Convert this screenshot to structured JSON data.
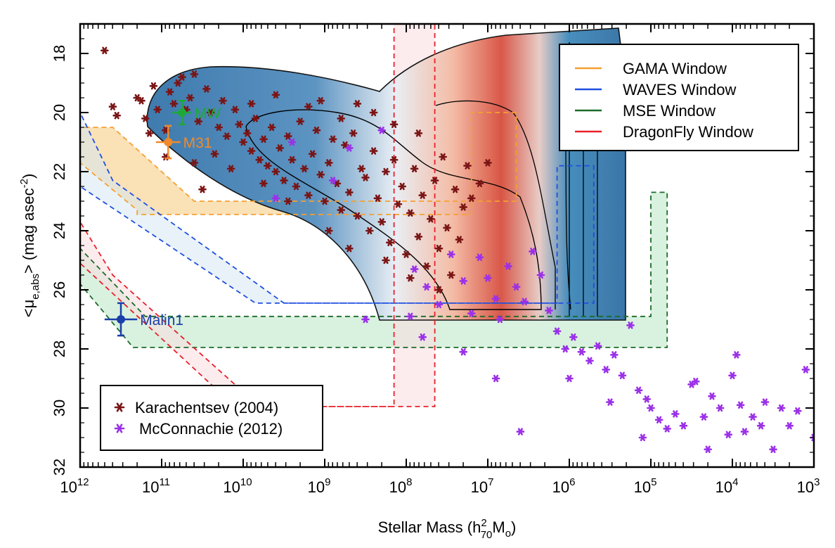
{
  "chart_data": {
    "type": "scatter",
    "xlabel_main": "Stellar Mass (h",
    "xlabel_sup": "2",
    "xlabel_sub": "70",
    "xlabel_tail": "M",
    "xlabel_tail_sub": "o",
    "xlabel_close": ")",
    "ylabel_pre": "<μ",
    "ylabel_sub": "e,abs",
    "ylabel_post": "> (mag asec",
    "ylabel_sup": "-2",
    "ylabel_close": ")",
    "x_axis": {
      "scale": "log",
      "reversed": true,
      "min_exp": 3,
      "max_exp": 12,
      "tick_base": "10",
      "ticks": [
        {
          "exp": 12,
          "label": "12"
        },
        {
          "exp": 11,
          "label": "11"
        },
        {
          "exp": 10,
          "label": "10"
        },
        {
          "exp": 9,
          "label": "9"
        },
        {
          "exp": 8,
          "label": "8"
        },
        {
          "exp": 7,
          "label": "7"
        },
        {
          "exp": 6,
          "label": "6"
        },
        {
          "exp": 5,
          "label": "5"
        },
        {
          "exp": 4,
          "label": "4"
        },
        {
          "exp": 3,
          "label": "3"
        }
      ]
    },
    "y_axis": {
      "reversed": true,
      "min": 17,
      "max": 32,
      "ticks": [
        {
          "value": 18,
          "label": "18"
        },
        {
          "value": 20,
          "label": "20"
        },
        {
          "value": 22,
          "label": "22"
        },
        {
          "value": 24,
          "label": "24"
        },
        {
          "value": 26,
          "label": "26"
        },
        {
          "value": 28,
          "label": "28"
        },
        {
          "value": 30,
          "label": "30"
        },
        {
          "value": 32,
          "label": "32"
        }
      ]
    },
    "windows": [
      {
        "name": "GAMA Window",
        "color": "#f5a030",
        "fill": "#f5c97a",
        "polygon": [
          [
            12,
            20.5
          ],
          [
            12,
            21.7
          ],
          [
            11.3,
            23.3
          ],
          [
            11.3,
            23.45
          ],
          [
            7.2,
            23.45
          ],
          [
            7.2,
            20.0
          ],
          [
            6.65,
            20.0
          ],
          [
            6.65,
            23.0
          ],
          [
            10.6,
            23.0
          ],
          [
            11.6,
            20.5
          ]
        ]
      },
      {
        "name": "WAVES Window",
        "color": "#1f4fe0",
        "fill": "#d6e8f2",
        "polygon": [
          [
            12,
            20.0
          ],
          [
            12,
            22.5
          ],
          [
            9.85,
            26.45
          ],
          [
            6.15,
            26.45
          ],
          [
            6.15,
            21.8
          ],
          [
            5.7,
            21.8
          ],
          [
            5.7,
            26.45
          ],
          [
            9.5,
            26.45
          ],
          [
            11.6,
            22.3
          ]
        ]
      },
      {
        "name": "MSE Window",
        "color": "#1b6b2a",
        "fill": "#b9e5c5",
        "polygon": [
          [
            12,
            24.6
          ],
          [
            12,
            25.8
          ],
          [
            11.35,
            27.95
          ],
          [
            4.8,
            27.95
          ],
          [
            4.8,
            22.7
          ],
          [
            5.0,
            22.7
          ],
          [
            5.0,
            26.9
          ],
          [
            11.2,
            26.9
          ]
        ]
      },
      {
        "name": "DragonFly Window",
        "color": "#e8202a",
        "fill": "#fbdde0",
        "polygon": [
          [
            12,
            23.7
          ],
          [
            12,
            25.1
          ],
          [
            10.1,
            29.95
          ],
          [
            8.15,
            29.95
          ],
          [
            8.15,
            17.0
          ],
          [
            7.65,
            17.0
          ],
          [
            7.65,
            29.95
          ],
          [
            9.8,
            29.95
          ],
          [
            11.6,
            25.5
          ]
        ]
      }
    ],
    "markers": [
      {
        "name": "MW",
        "logm": 10.75,
        "mu": 20.0,
        "xerr": 0.12,
        "yerr": 0.4,
        "color": "#1fa83a"
      },
      {
        "name": "M31",
        "logm": 10.92,
        "mu": 21.0,
        "xerr": 0.15,
        "yerr": 0.55,
        "color": "#f08a2a"
      },
      {
        "name": "Malin1",
        "logm": 11.5,
        "mu": 27.0,
        "xerr": 0.2,
        "yerr": 0.55,
        "color": "#1a3fa8"
      }
    ],
    "series": [
      {
        "name": "Karachentsev (2004)",
        "color": "#7a1515",
        "points": [
          [
            11.7,
            17.9
          ],
          [
            11.6,
            19.8
          ],
          [
            11.55,
            20.1
          ],
          [
            11.3,
            19.5
          ],
          [
            11.25,
            19.6
          ],
          [
            11.2,
            20.2
          ],
          [
            11.1,
            19.1
          ],
          [
            11.05,
            19.9
          ],
          [
            10.95,
            20.6
          ],
          [
            10.9,
            19.3
          ],
          [
            10.85,
            19.7
          ],
          [
            10.8,
            19.0
          ],
          [
            10.75,
            18.8
          ],
          [
            10.7,
            19.9
          ],
          [
            10.65,
            19.5
          ],
          [
            10.6,
            18.7
          ],
          [
            10.55,
            20.3
          ],
          [
            10.45,
            19.2
          ],
          [
            10.4,
            20.0
          ],
          [
            10.3,
            20.5
          ],
          [
            10.25,
            19.6
          ],
          [
            10.2,
            20.8
          ],
          [
            10.1,
            19.9
          ],
          [
            10.05,
            20.4
          ],
          [
            10.0,
            21.0
          ],
          [
            9.95,
            20.7
          ],
          [
            9.9,
            21.3
          ],
          [
            9.85,
            20.2
          ],
          [
            9.8,
            21.6
          ],
          [
            9.75,
            20.9
          ],
          [
            9.7,
            21.8
          ],
          [
            9.65,
            20.5
          ],
          [
            9.6,
            22.0
          ],
          [
            9.55,
            21.2
          ],
          [
            9.5,
            22.3
          ],
          [
            9.45,
            20.8
          ],
          [
            9.4,
            21.6
          ],
          [
            9.35,
            22.5
          ],
          [
            9.3,
            20.3
          ],
          [
            9.25,
            21.9
          ],
          [
            9.2,
            22.8
          ],
          [
            9.15,
            21.4
          ],
          [
            9.1,
            20.6
          ],
          [
            9.05,
            22.1
          ],
          [
            9.0,
            23.0
          ],
          [
            8.95,
            21.7
          ],
          [
            8.9,
            20.9
          ],
          [
            8.85,
            22.4
          ],
          [
            8.8,
            23.3
          ],
          [
            8.75,
            21.1
          ],
          [
            8.7,
            22.7
          ],
          [
            8.65,
            20.7
          ],
          [
            8.6,
            23.5
          ],
          [
            8.55,
            21.9
          ],
          [
            8.5,
            22.2
          ],
          [
            8.45,
            24.0
          ],
          [
            8.4,
            21.3
          ],
          [
            8.35,
            22.9
          ],
          [
            8.3,
            23.7
          ],
          [
            8.25,
            22.0
          ],
          [
            8.2,
            24.4
          ],
          [
            8.15,
            21.6
          ],
          [
            8.1,
            23.1
          ],
          [
            8.05,
            22.5
          ],
          [
            8.0,
            24.8
          ],
          [
            7.95,
            23.4
          ],
          [
            7.9,
            21.9
          ],
          [
            7.85,
            24.2
          ],
          [
            7.8,
            22.8
          ],
          [
            7.75,
            25.2
          ],
          [
            7.7,
            23.6
          ],
          [
            7.65,
            22.3
          ],
          [
            7.6,
            24.6
          ],
          [
            7.55,
            21.5
          ],
          [
            7.5,
            23.9
          ],
          [
            7.45,
            25.5
          ],
          [
            7.4,
            22.6
          ],
          [
            7.35,
            24.3
          ],
          [
            7.3,
            23.2
          ],
          [
            7.25,
            21.8
          ],
          [
            7.2,
            22.9
          ],
          [
            7.1,
            22.4
          ],
          [
            7.0,
            21.7
          ],
          [
            9.6,
            19.4
          ],
          [
            9.2,
            19.8
          ],
          [
            8.8,
            20.2
          ],
          [
            8.4,
            20.0
          ],
          [
            9.9,
            19.7
          ],
          [
            10.35,
            21.4
          ],
          [
            10.15,
            21.9
          ],
          [
            10.5,
            22.6
          ],
          [
            9.75,
            22.4
          ],
          [
            9.45,
            23.0
          ],
          [
            8.95,
            24.0
          ],
          [
            8.7,
            24.6
          ],
          [
            8.25,
            25.0
          ],
          [
            7.95,
            25.6
          ],
          [
            7.6,
            26.0
          ],
          [
            11.15,
            20.7
          ],
          [
            10.95,
            21.5
          ],
          [
            10.6,
            21.7
          ],
          [
            9.05,
            19.6
          ],
          [
            8.6,
            19.7
          ],
          [
            8.15,
            20.4
          ],
          [
            7.85,
            20.7
          ]
        ]
      },
      {
        "name": "McConnachie (2012)",
        "color": "#9b30e8",
        "points": [
          [
            9.6,
            22.9
          ],
          [
            9.4,
            21.0
          ],
          [
            8.7,
            21.2
          ],
          [
            8.3,
            20.6
          ],
          [
            7.9,
            25.3
          ],
          [
            7.75,
            25.9
          ],
          [
            7.6,
            26.5
          ],
          [
            7.45,
            24.8
          ],
          [
            7.3,
            25.7
          ],
          [
            7.2,
            26.8
          ],
          [
            7.1,
            24.9
          ],
          [
            7.0,
            25.6
          ],
          [
            6.9,
            26.3
          ],
          [
            6.85,
            27.0
          ],
          [
            6.75,
            25.2
          ],
          [
            6.65,
            25.9
          ],
          [
            6.55,
            26.4
          ],
          [
            6.45,
            24.7
          ],
          [
            6.35,
            25.5
          ],
          [
            6.25,
            26.7
          ],
          [
            6.15,
            27.4
          ],
          [
            6.05,
            28.0
          ],
          [
            5.95,
            27.6
          ],
          [
            5.85,
            28.1
          ],
          [
            5.75,
            28.4
          ],
          [
            5.65,
            27.9
          ],
          [
            5.55,
            28.7
          ],
          [
            5.45,
            28.2
          ],
          [
            5.35,
            28.9
          ],
          [
            5.25,
            27.2
          ],
          [
            5.15,
            29.4
          ],
          [
            5.05,
            29.7
          ],
          [
            5.0,
            30.0
          ],
          [
            4.9,
            30.4
          ],
          [
            4.8,
            30.7
          ],
          [
            4.7,
            30.2
          ],
          [
            4.6,
            30.6
          ],
          [
            4.45,
            29.1
          ],
          [
            4.35,
            30.3
          ],
          [
            4.25,
            29.6
          ],
          [
            4.15,
            30.0
          ],
          [
            4.05,
            30.9
          ],
          [
            3.95,
            28.2
          ],
          [
            3.85,
            30.8
          ],
          [
            3.75,
            30.3
          ],
          [
            3.6,
            29.8
          ],
          [
            3.5,
            31.4
          ],
          [
            3.4,
            30.0
          ],
          [
            3.3,
            30.6
          ],
          [
            3.2,
            30.1
          ],
          [
            3.1,
            28.7
          ],
          [
            3.0,
            31.0
          ],
          [
            6.0,
            29.0
          ],
          [
            5.5,
            29.8
          ],
          [
            4.0,
            28.9
          ],
          [
            3.9,
            29.9
          ],
          [
            4.5,
            29.2
          ],
          [
            6.9,
            29.0
          ],
          [
            7.3,
            28.1
          ],
          [
            7.8,
            27.6
          ],
          [
            7.95,
            26.9
          ],
          [
            8.5,
            27.0
          ],
          [
            8.9,
            22.3
          ],
          [
            6.6,
            30.8
          ],
          [
            5.1,
            31.0
          ],
          [
            4.3,
            31.4
          ],
          [
            3.65,
            30.6
          ]
        ]
      }
    ],
    "legend_windows": {
      "placement": "top-right"
    },
    "legend_series": {
      "placement": "bottom-left"
    }
  }
}
